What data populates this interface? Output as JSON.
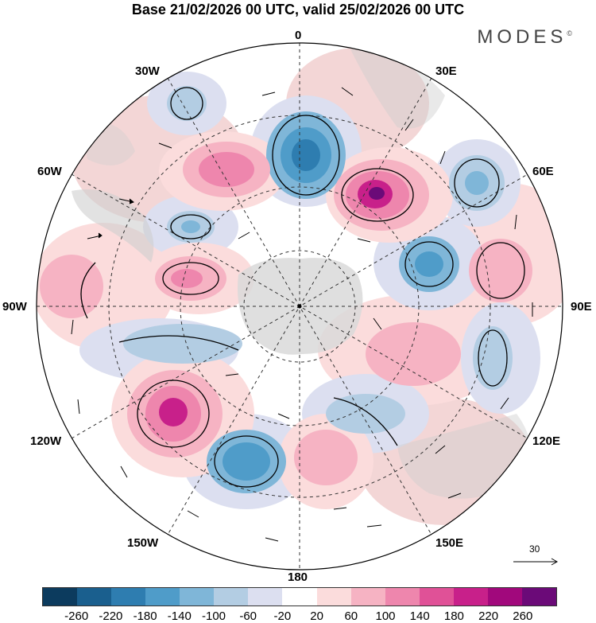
{
  "title": "Base 21/02/2026 00 UTC, valid 25/02/2026 00 UTC",
  "logo": "MODES",
  "logo_mark": "©",
  "longitude_labels": {
    "top": "0",
    "bottom": "180",
    "left": "90W",
    "right": "90E",
    "l30w": "30W",
    "l60w": "60W",
    "l120w": "120W",
    "l150w": "150W",
    "r30e": "30E",
    "r60e": "60E",
    "r120e": "120E",
    "r150e": "150E"
  },
  "reference_vector": "30",
  "colorbar": {
    "colors": [
      "#0c3b5e",
      "#1a5f8e",
      "#2e7db0",
      "#4f9cc9",
      "#7fb6d8",
      "#b3cde3",
      "#dcdff0",
      "#ffffff",
      "#fbdcdc",
      "#f6b3c3",
      "#ee86ad",
      "#e05197",
      "#c8208a",
      "#a1087c",
      "#6b0a78"
    ],
    "ticks": [
      "-260",
      "-220",
      "-180",
      "-140",
      "-100",
      "-60",
      "-20",
      "20",
      "60",
      "100",
      "140",
      "180",
      "220",
      "260"
    ]
  }
}
